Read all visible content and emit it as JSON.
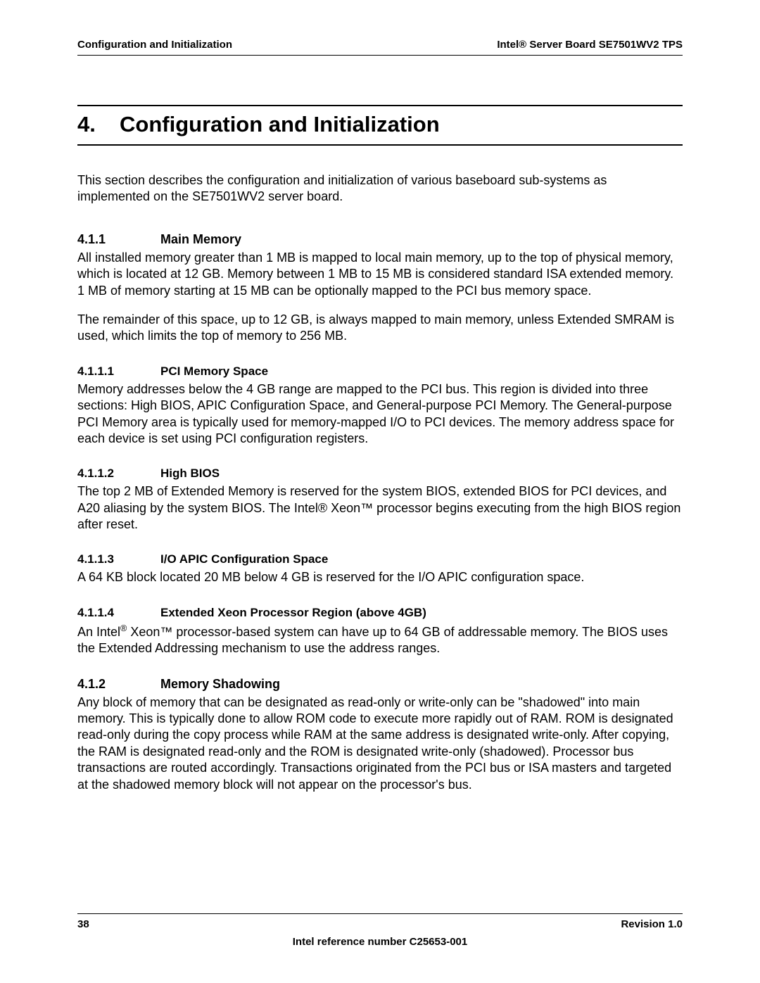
{
  "header": {
    "left": "Configuration and Initialization",
    "right": "Intel® Server Board SE7501WV2 TPS"
  },
  "chapter": {
    "number": "4.",
    "title": "Configuration and Initialization"
  },
  "intro": "This section describes the configuration and initialization of various baseboard sub-systems as implemented on the SE7501WV2 server board.",
  "sections": {
    "s411": {
      "num": "4.1.1",
      "title": "Main Memory",
      "p1": "All installed memory greater than 1 MB is mapped to local main memory, up to the top of physical memory, which is located at 12 GB. Memory between 1 MB to 15 MB is considered standard ISA extended memory. 1 MB of memory starting at 15 MB can be optionally mapped to the PCI bus memory space.",
      "p2": "The remainder of this space, up to 12 GB, is always mapped to main memory, unless Extended SMRAM is used, which limits the top of memory to 256 MB."
    },
    "s4111": {
      "num": "4.1.1.1",
      "title": "PCI Memory Space",
      "p1": "Memory addresses below the 4 GB range are mapped to the PCI bus. This region is divided into three sections: High BIOS, APIC Configuration Space, and General-purpose PCI Memory. The General-purpose PCI Memory area is typically used for memory-mapped I/O to PCI devices. The memory address space for each device is set using PCI configuration registers."
    },
    "s4112": {
      "num": "4.1.1.2",
      "title": "High BIOS",
      "p1": "The top 2 MB of Extended Memory is reserved for the system BIOS, extended BIOS for PCI devices, and A20 aliasing by the system BIOS. The Intel® Xeon™ processor begins executing from the high BIOS region after reset."
    },
    "s4113": {
      "num": "4.1.1.3",
      "title": "I/O APIC Configuration Space",
      "p1": "A 64 KB block located 20 MB below 4 GB is reserved for the I/O APIC configuration space."
    },
    "s4114": {
      "num": "4.1.1.4",
      "title": "Extended Xeon Processor Region (above 4GB)",
      "p1_prefix": "An Intel",
      "p1_suffix": " Xeon™ processor-based system can have up to 64 GB of addressable memory. The BIOS uses the Extended Addressing mechanism to use the address ranges."
    },
    "s412": {
      "num": "4.1.2",
      "title": "Memory Shadowing",
      "p1": "Any block of memory that can be designated as read-only or write-only can be \"shadowed\" into main memory. This is typically done to allow ROM code to execute more rapidly out of RAM. ROM is designated read-only during the copy process while RAM at the same address is designated write-only. After copying, the RAM is designated read-only and the ROM is designated write-only (shadowed). Processor bus transactions are routed accordingly. Transactions originated from the PCI bus or ISA masters and targeted at the shadowed memory block will not appear on the processor's bus."
    }
  },
  "footer": {
    "page": "38",
    "revision": "Revision 1.0",
    "reference": "Intel reference number C25653-001"
  }
}
